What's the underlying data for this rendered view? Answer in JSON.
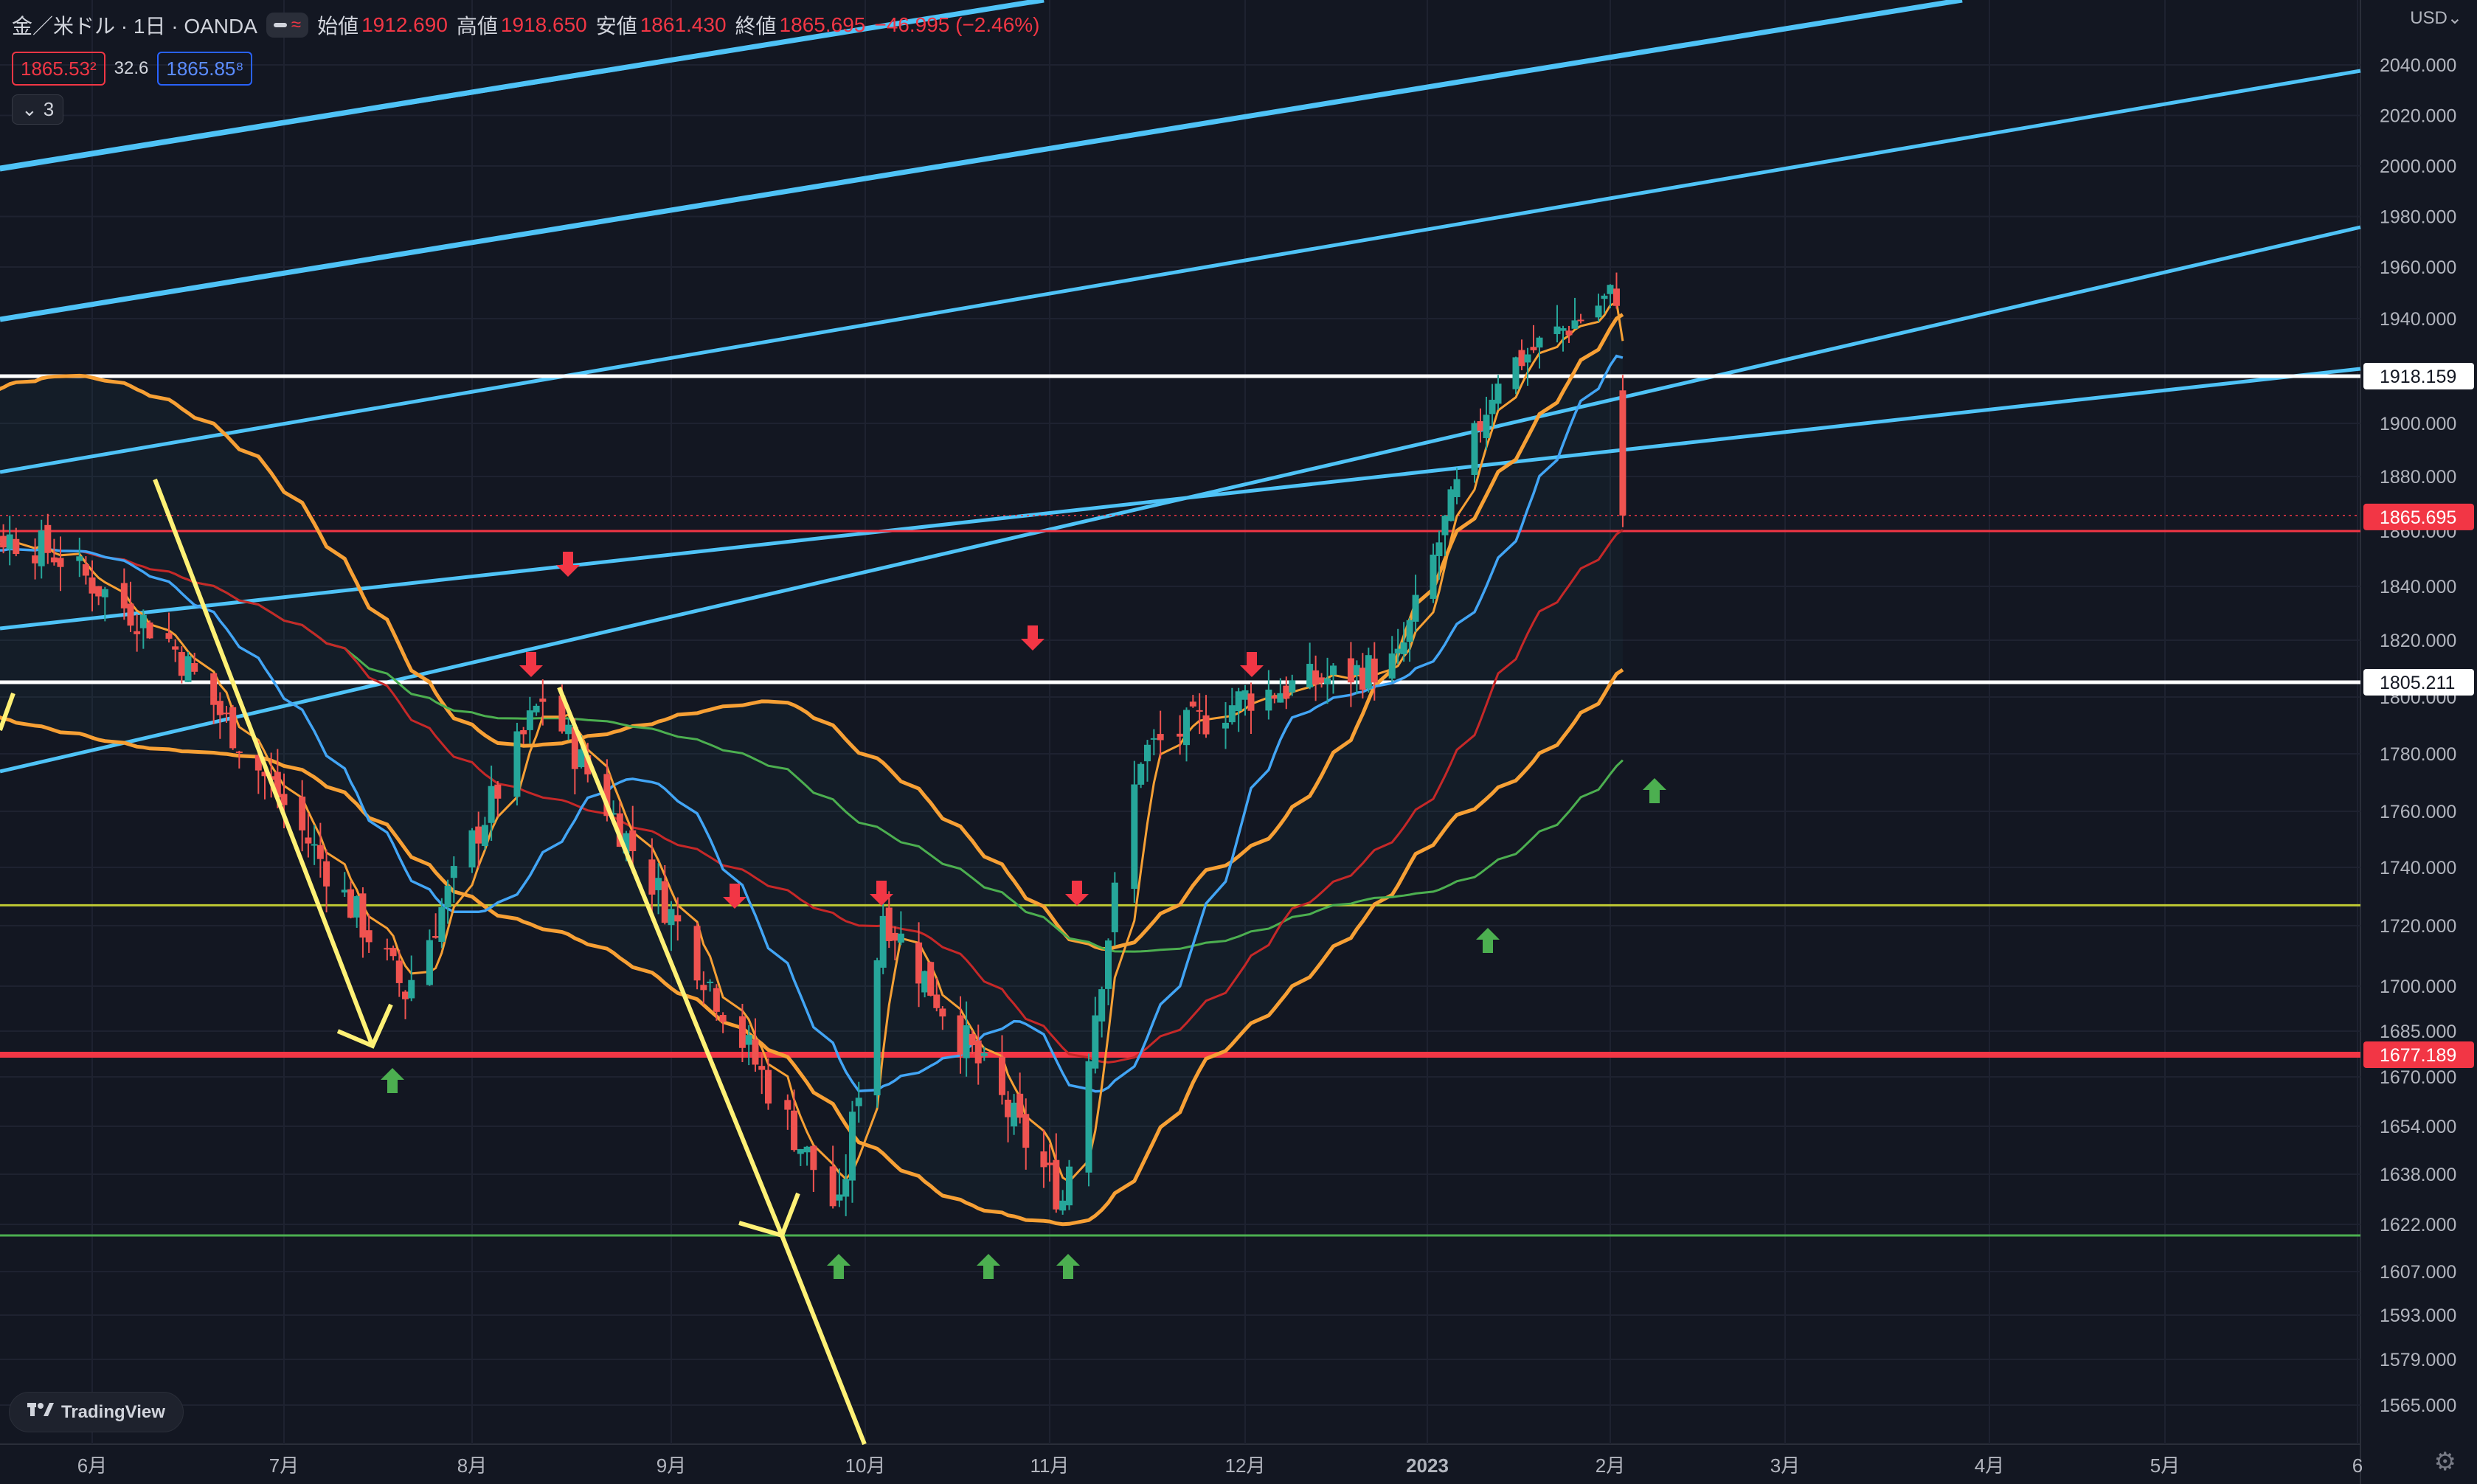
{
  "header": {
    "symbol": "金／米ドル · 1日 · OANDA",
    "open_label": "始値",
    "open_value": "1912.690",
    "high_label": "高値",
    "high_value": "1918.650",
    "low_label": "安値",
    "low_value": "1861.430",
    "close_label": "終値",
    "close_value": "1865.695",
    "change": "−46.995 (−2.46%)"
  },
  "quote": {
    "bid": "1865.53²",
    "spread": "32.6",
    "ask": "1865.85⁸"
  },
  "indicators": {
    "toggle_icon": "chevron-down-icon",
    "count": "3"
  },
  "currency": "USD",
  "logo": "TradingView",
  "colors": {
    "up": "#26a69a",
    "down": "#ef5350",
    "channel": "#4fc3f7",
    "bollinger": "#f7a035",
    "ma_blue": "#42a5f5",
    "ma_red": "#c62828",
    "ma_green": "#4caf50",
    "hline_white": "#ffffff",
    "hline_red": "#f23645",
    "hline_yellow": "#c0ca33",
    "hline_green": "#4caf50",
    "trend_arrow": "#fff176",
    "marker_up": "#4caf50",
    "marker_down": "#f23645"
  },
  "chart_data": {
    "type": "candlestick",
    "x_tick_labels": [
      "6月",
      "7月",
      "8月",
      "9月",
      "10月",
      "11月",
      "12月",
      "2023",
      "2月",
      "3月",
      "4月",
      "5月",
      "6"
    ],
    "y_tick_labels": [
      "2040.000",
      "2020.000",
      "2000.000",
      "1980.000",
      "1960.000",
      "1940.000",
      "1900.000",
      "1880.000",
      "1860.000",
      "1840.000",
      "1820.000",
      "1800.000",
      "1780.000",
      "1760.000",
      "1740.000",
      "1720.000",
      "1700.000",
      "1685.000",
      "1670.000",
      "1654.000",
      "1638.000",
      "1622.000",
      "1607.000",
      "1593.000",
      "1579.000",
      "1565.000"
    ],
    "price_markers": [
      {
        "label": "1918.159",
        "style": "white"
      },
      {
        "label": "1865.695",
        "style": "red"
      },
      {
        "label": "1805.211",
        "style": "white"
      },
      {
        "label": "1677.189",
        "style": "red"
      }
    ],
    "horizontal_lines": [
      {
        "value": 1918.159,
        "color": "white"
      },
      {
        "value": 1860.0,
        "color": "red"
      },
      {
        "value": 1805.211,
        "color": "white"
      },
      {
        "value": 1727.0,
        "color": "yellow"
      },
      {
        "value": 1677.189,
        "color": "red"
      },
      {
        "value": 1616.0,
        "color": "green"
      }
    ],
    "anchor_series_approx": [
      {
        "date": "2022-05-26",
        "close": 1852
      },
      {
        "date": "2022-06-13",
        "close": 1820
      },
      {
        "date": "2022-07-21",
        "close": 1698
      },
      {
        "date": "2022-08-12",
        "close": 1800
      },
      {
        "date": "2022-09-27",
        "close": 1625
      },
      {
        "date": "2022-10-04",
        "close": 1725
      },
      {
        "date": "2022-11-03",
        "close": 1630
      },
      {
        "date": "2022-11-15",
        "close": 1780
      },
      {
        "date": "2022-12-01",
        "close": 1800
      },
      {
        "date": "2022-12-27",
        "close": 1812
      },
      {
        "date": "2023-01-13",
        "close": 1919
      },
      {
        "date": "2023-02-02",
        "close": 1950
      },
      {
        "date": "2023-02-03",
        "close": 1865.695
      }
    ]
  }
}
